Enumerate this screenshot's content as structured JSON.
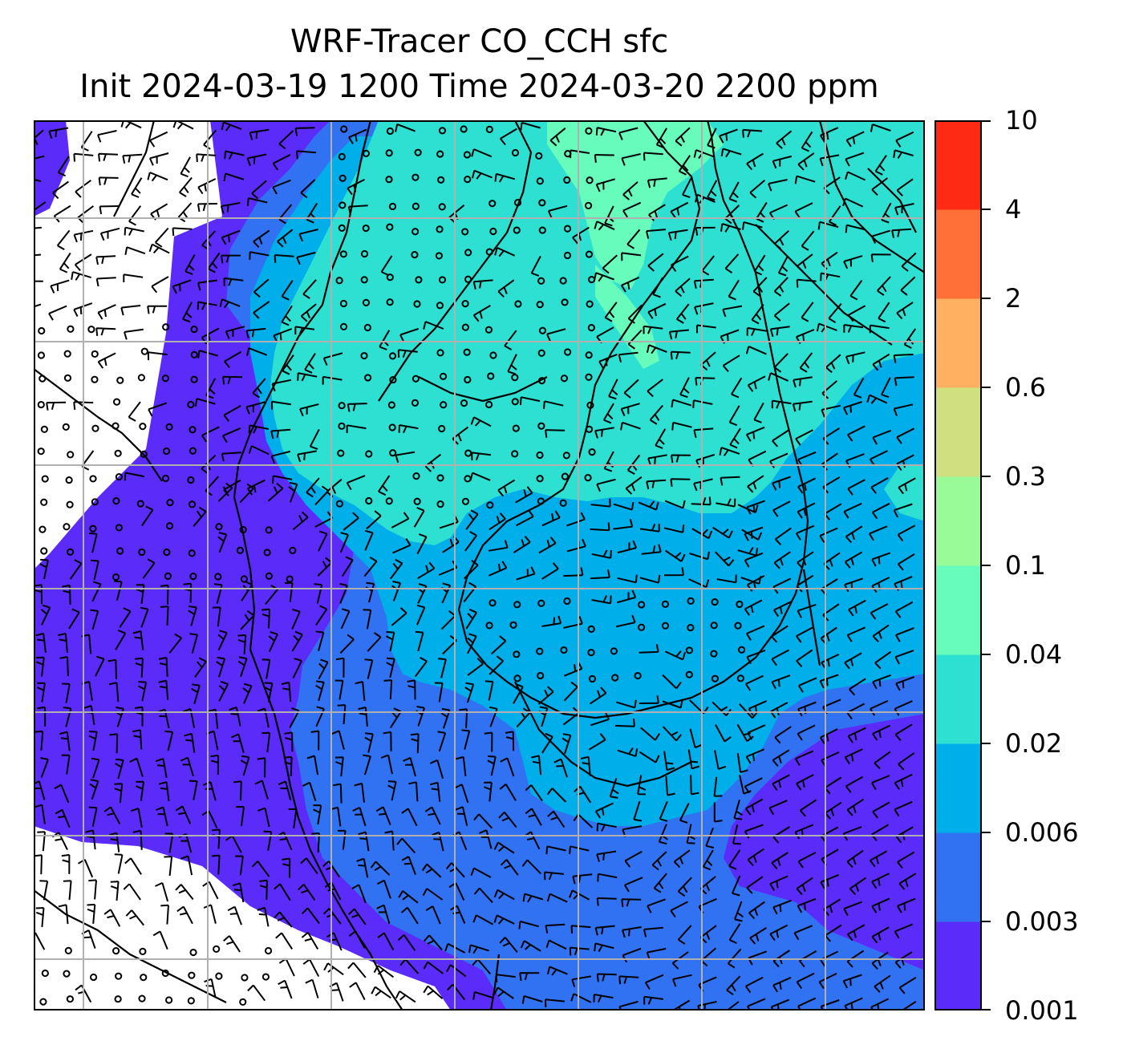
{
  "title": {
    "line1": "WRF-Tracer CO_CCH sfc",
    "line2": "Init 2024-03-19 1200 Time 2024-03-20 2200 ppm"
  },
  "colorbar": {
    "levels": [
      "0.001",
      "0.003",
      "0.006",
      "0.02",
      "0.04",
      "0.1",
      "0.3",
      "0.6",
      "2",
      "4",
      "10"
    ],
    "colors": [
      "#5b2bfa",
      "#3172f2",
      "#00aeea",
      "#2ee0d2",
      "#68fcbc",
      "#98fb98",
      "#d0e080",
      "#ffb060",
      "#ff7038",
      "#ff2a14"
    ]
  },
  "map": {
    "background": "#ffffff",
    "gridline_color": "#b0b0b0",
    "coastline_color": "#000000",
    "wind_barbs": "black"
  }
}
